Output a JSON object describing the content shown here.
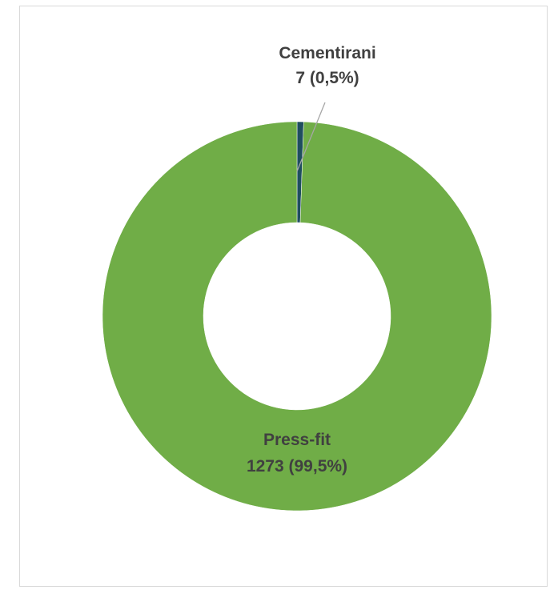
{
  "chart_data": {
    "type": "pie",
    "donut": true,
    "title": "",
    "legend": "none",
    "slices": [
      {
        "label": "Cementirani",
        "value": 7,
        "percent_text": "7 (0,5%)",
        "color": "#1f4e5f"
      },
      {
        "label": "Press-fit",
        "value": 1273,
        "percent_text": "1273 (99,5%)",
        "color": "#70ad47"
      }
    ]
  }
}
